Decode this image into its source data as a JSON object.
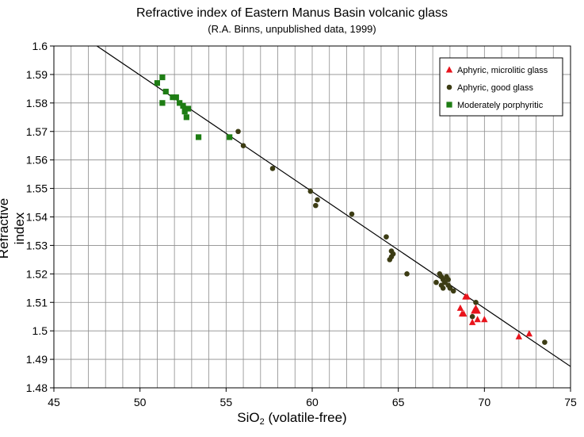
{
  "chart_data": {
    "type": "scatter",
    "title": "Refractive index of Eastern Manus Basin volcanic glass",
    "subtitle": "(R.A. Binns, unpublished data, 1999)",
    "xlabel_main": "SiO",
    "xlabel_sub": "2",
    "xlabel_rest": " (volatile-free)",
    "ylabel": "Refractive index",
    "xlim": [
      45,
      75
    ],
    "ylim": [
      1.48,
      1.6
    ],
    "x_ticks": [
      "45",
      "50",
      "55",
      "60",
      "65",
      "70",
      "75"
    ],
    "y_ticks": [
      "1.48",
      "1.49",
      "1.5",
      "1.51",
      "1.52",
      "1.53",
      "1.54",
      "1.55",
      "1.56",
      "1.57",
      "1.58",
      "1.59",
      "1.6"
    ],
    "grid": true,
    "legend_position": "top-right",
    "trendline": {
      "x": [
        47.5,
        75
      ],
      "y": [
        1.6,
        1.4875
      ]
    },
    "series": [
      {
        "name": "Aphyric, microlitic glass",
        "marker": "triangle",
        "color": "#e8141c",
        "points": [
          [
            68.6,
            1.508
          ],
          [
            68.8,
            1.506
          ],
          [
            68.7,
            1.506
          ],
          [
            68.9,
            1.512
          ],
          [
            69.0,
            1.512
          ],
          [
            69.3,
            1.503
          ],
          [
            69.4,
            1.507
          ],
          [
            69.5,
            1.508
          ],
          [
            69.6,
            1.504
          ],
          [
            69.6,
            1.507
          ],
          [
            70.0,
            1.504
          ],
          [
            72.0,
            1.498
          ],
          [
            72.6,
            1.499
          ]
        ]
      },
      {
        "name": "Aphyric, good glass",
        "marker": "circle",
        "color": "#3c3c14",
        "points": [
          [
            55.7,
            1.57
          ],
          [
            56.0,
            1.565
          ],
          [
            57.7,
            1.557
          ],
          [
            59.9,
            1.549
          ],
          [
            60.3,
            1.546
          ],
          [
            60.2,
            1.544
          ],
          [
            62.3,
            1.541
          ],
          [
            64.3,
            1.533
          ],
          [
            64.6,
            1.528
          ],
          [
            64.7,
            1.527
          ],
          [
            64.6,
            1.526
          ],
          [
            64.5,
            1.525
          ],
          [
            65.5,
            1.52
          ],
          [
            67.2,
            1.517
          ],
          [
            67.4,
            1.52
          ],
          [
            67.5,
            1.519
          ],
          [
            67.6,
            1.518
          ],
          [
            67.7,
            1.517
          ],
          [
            67.5,
            1.516
          ],
          [
            67.8,
            1.519
          ],
          [
            67.9,
            1.518
          ],
          [
            67.6,
            1.515
          ],
          [
            68.0,
            1.515
          ],
          [
            68.2,
            1.514
          ],
          [
            67.9,
            1.516
          ],
          [
            69.3,
            1.505
          ],
          [
            69.5,
            1.51
          ],
          [
            73.5,
            1.496
          ]
        ]
      },
      {
        "name": "Moderately porphyritic",
        "marker": "square",
        "color": "#1e7d14",
        "points": [
          [
            51.0,
            1.587
          ],
          [
            51.3,
            1.589
          ],
          [
            51.5,
            1.584
          ],
          [
            51.3,
            1.58
          ],
          [
            51.9,
            1.582
          ],
          [
            52.1,
            1.582
          ],
          [
            52.3,
            1.58
          ],
          [
            52.5,
            1.579
          ],
          [
            52.6,
            1.577
          ],
          [
            52.8,
            1.578
          ],
          [
            52.7,
            1.575
          ],
          [
            53.4,
            1.568
          ],
          [
            55.2,
            1.568
          ]
        ]
      }
    ]
  }
}
